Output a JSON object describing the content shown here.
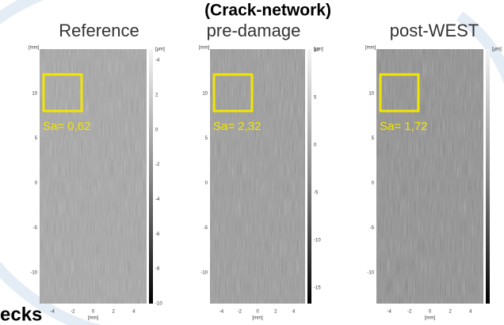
{
  "header": {
    "title": "(Crack-network)",
    "fragment": "ecks"
  },
  "panels": [
    {
      "title": "Reference",
      "sa": "Sa= 0,62",
      "y_unit": "[mm]",
      "bar_unit": "[µm]",
      "x_unit": "[mm]",
      "yticks": [
        "10",
        "5",
        "0",
        "-5",
        "-10"
      ],
      "xticks": [
        "-4",
        "-2",
        "0",
        "2",
        "4"
      ],
      "barticks": [
        "-4",
        "2",
        "0",
        "-2",
        "-4",
        "-6",
        "-8",
        "-10"
      ]
    },
    {
      "title": "pre-damage",
      "sa": "Sa= 2,32",
      "y_unit": "[mm]",
      "bar_unit": "[µm]",
      "x_unit": "[mm]",
      "yticks": [
        "10",
        "5",
        "0",
        "-5",
        "-10"
      ],
      "xticks": [
        "-4",
        "-2",
        "0",
        "2",
        "4"
      ],
      "barticks": [
        "10",
        "5",
        "0",
        "-5",
        "-10",
        "-15"
      ]
    },
    {
      "title": "post-WEST",
      "sa": "Sa= 1,72",
      "y_unit": "[mm]",
      "bar_unit": "[µm]",
      "x_unit": "[mm]",
      "yticks": [
        "10",
        "5",
        "0",
        "-5",
        "-10"
      ],
      "xticks": [
        "-4",
        "-2",
        "0",
        "2",
        "4"
      ],
      "barticks": []
    }
  ]
}
